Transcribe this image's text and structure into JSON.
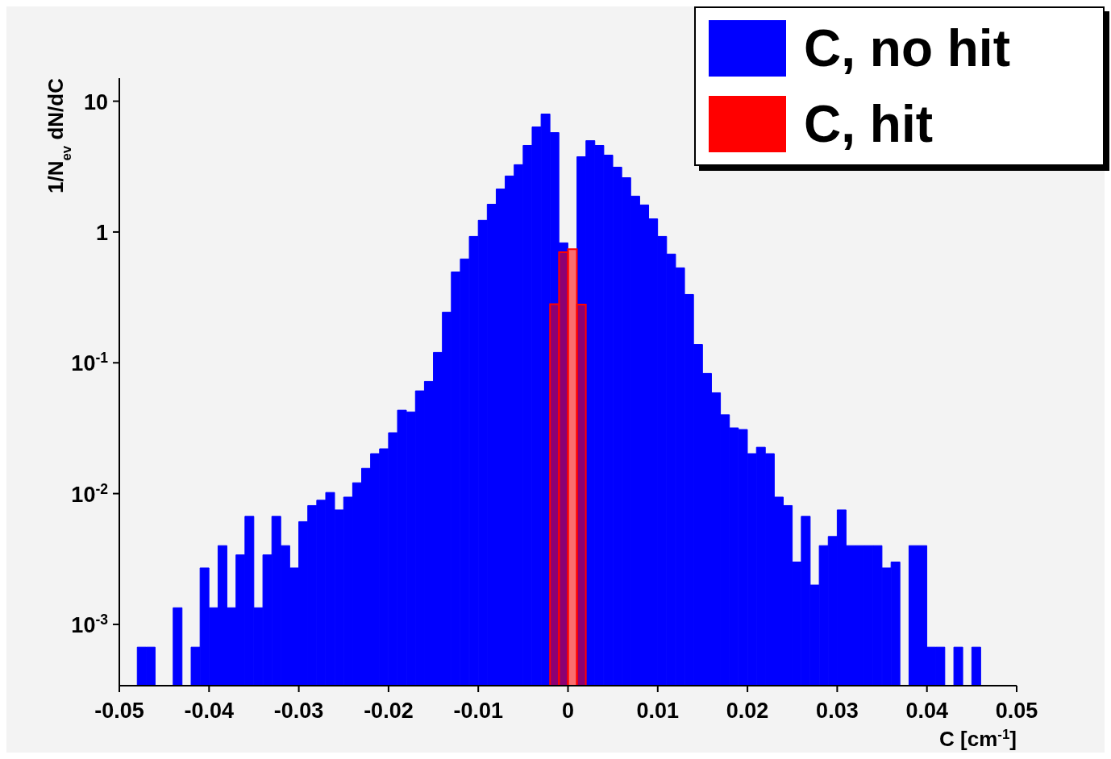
{
  "chart_data": {
    "type": "histogram",
    "xlabel": "C [cm$^{-1}$]",
    "ylabel": "1/N$_{ev}$ dN/dC",
    "log": true,
    "legend": "top right",
    "bins": [
      -0.05,
      -0.049,
      -0.048,
      -0.047,
      -0.046,
      -0.045,
      -0.044,
      -0.043,
      -0.042,
      -0.041,
      -0.04,
      -0.039,
      -0.038,
      -0.037,
      -0.036,
      -0.035,
      -0.034,
      -0.033,
      -0.032,
      -0.031,
      -0.03,
      -0.029,
      -0.028,
      -0.027,
      -0.026,
      -0.025,
      -0.024,
      -0.023,
      -0.022,
      -0.021,
      -0.02,
      -0.019,
      -0.018,
      -0.017,
      -0.016,
      -0.015,
      -0.014,
      -0.013,
      -0.012,
      -0.011,
      -0.01,
      -0.009,
      -0.008,
      -0.007,
      -0.006,
      -0.005,
      -0.004,
      -0.003,
      -0.002,
      -0.001,
      0,
      0.001,
      0.002,
      0.003,
      0.004,
      0.005,
      0.006,
      0.007,
      0.008,
      0.009,
      0.01,
      0.011,
      0.012,
      0.013,
      0.014,
      0.015,
      0.016,
      0.017,
      0.018,
      0.019,
      0.02,
      0.021,
      0.022,
      0.023,
      0.024,
      0.025,
      0.026,
      0.027,
      0.028,
      0.029,
      0.03,
      0.031,
      0.032,
      0.033,
      0.034,
      0.035,
      0.036,
      0.037,
      0.038,
      0.039,
      0.04,
      0.041,
      0.042,
      0.043,
      0.044,
      0.045,
      0.046,
      0.047,
      0.048,
      0.049,
      0.05
    ],
    "series": [
      {
        "name": "C, no hit",
        "color": "#0000ff",
        "values": [
          null,
          null,
          0.00067,
          0.00067,
          null,
          null,
          0.00134,
          null,
          0.00067,
          0.0027,
          0.00134,
          0.004,
          0.00134,
          0.0034,
          0.0067,
          0.00134,
          0.0034,
          0.0067,
          0.004,
          0.0027,
          0.0061,
          0.0081,
          0.0089,
          0.0102,
          0.0075,
          0.0094,
          0.0121,
          0.0156,
          0.0202,
          0.022,
          0.0292,
          0.0434,
          0.0421,
          0.061,
          0.072,
          0.12,
          0.244,
          0.495,
          0.622,
          0.925,
          1.23,
          1.63,
          2.13,
          2.68,
          3.27,
          4.59,
          6.36,
          7.98,
          5.75,
          0.826,
          null,
          3.76,
          4.99,
          4.59,
          3.87,
          3.13,
          2.6,
          1.88,
          1.61,
          1.26,
          0.925,
          0.678,
          0.532,
          0.333,
          0.138,
          0.083,
          0.059,
          0.04,
          0.0318,
          0.0309,
          0.0202,
          0.0226,
          0.0202,
          0.0094,
          0.0081,
          0.003,
          0.0067,
          0.002,
          0.004,
          0.0047,
          0.0075,
          0.004,
          0.004,
          0.004,
          0.004,
          0.0027,
          0.003,
          null,
          0.004,
          0.004,
          0.00067,
          0.00067,
          null,
          0.00067,
          null,
          0.00067,
          null,
          null,
          null,
          null
        ]
      },
      {
        "name": "C, hit",
        "color": "#ff0000",
        "values": [
          null,
          null,
          null,
          null,
          null,
          null,
          null,
          null,
          null,
          null,
          null,
          null,
          null,
          null,
          null,
          null,
          null,
          null,
          null,
          null,
          null,
          null,
          null,
          null,
          null,
          null,
          null,
          null,
          null,
          null,
          null,
          null,
          null,
          null,
          null,
          null,
          null,
          null,
          null,
          null,
          null,
          null,
          null,
          null,
          null,
          null,
          null,
          null,
          0.281,
          0.7,
          0.74,
          0.279,
          null,
          null,
          null,
          null,
          null,
          null,
          null,
          null,
          null,
          null,
          null,
          null,
          null,
          null,
          null,
          null,
          null,
          null,
          null,
          null,
          null,
          null,
          null,
          null,
          null,
          null,
          null,
          null,
          null,
          null,
          null,
          null,
          null,
          null,
          null,
          null,
          null,
          null,
          null,
          null,
          null,
          null,
          null,
          null,
          null,
          null,
          null,
          null
        ]
      }
    ],
    "xlim": [
      -0.05,
      0.05
    ],
    "xticks": [
      -0.05,
      -0.04,
      -0.03,
      -0.02,
      -0.01,
      0,
      0.01,
      0.02,
      0.03,
      0.04,
      0.05
    ],
    "ylim": [
      0.00034,
      15
    ],
    "yticks": [
      {
        "value": 0.001,
        "label": "10$^{-3}$"
      },
      {
        "value": 0.01,
        "label": "10$^{-2}$"
      },
      {
        "value": 0.1,
        "label": "10$^{-1}$"
      },
      {
        "value": 1,
        "label": "1"
      },
      {
        "value": 10,
        "label": "10"
      }
    ]
  }
}
